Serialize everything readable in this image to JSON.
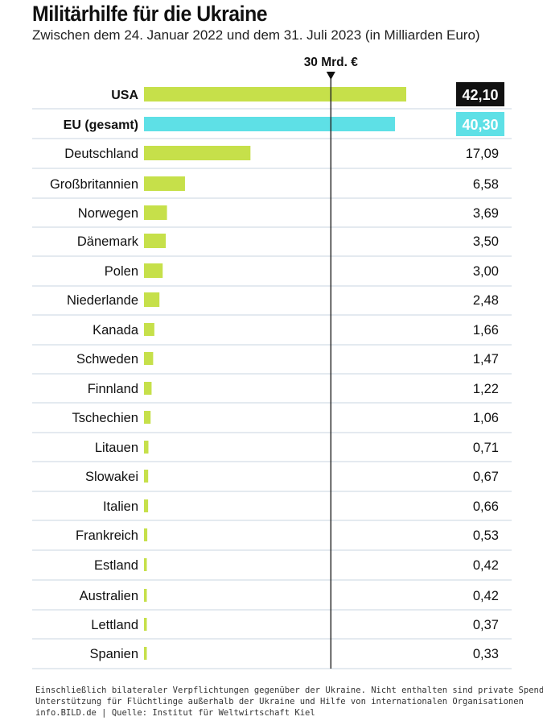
{
  "header": {
    "title": "Militärhilfe für die Ukraine",
    "subtitle": "Zwischen dem 24. Januar 2022 und dem 31. Juli 2023 (in Milliarden Euro)"
  },
  "footer": {
    "note_line1": "Einschließlich bilateraler Verpflichtungen gegenüber der Ukraine. Nicht enthalten sind private Spenden,",
    "note_line2": "Unterstützung für Flüchtlinge außerhalb der Ukraine und Hilfe von internationalen Organisationen",
    "source": "info.BILD.de | Quelle: Institut für Weltwirtschaft Kiel"
  },
  "chart_data": {
    "type": "bar",
    "orientation": "horizontal",
    "title": "Militärhilfe für die Ukraine",
    "subtitle": "Zwischen dem 24. Januar 2022 und dem 31. Juli 2023 (in Milliarden Euro)",
    "unit": "Milliarden Euro",
    "xlim": [
      0,
      45
    ],
    "reference_line": {
      "value": 30,
      "label": "30 Mrd. €"
    },
    "colors": {
      "default": "#c6e04a",
      "eu": "#5ee0e6",
      "usa_badge": "#111111",
      "grid": "#c9d5e0"
    },
    "categories": [
      "USA",
      "EU (gesamt)",
      "Deutschland",
      "Großbritannien",
      "Norwegen",
      "Dänemark",
      "Polen",
      "Niederlande",
      "Kanada",
      "Schweden",
      "Finnland",
      "Tschechien",
      "Litauen",
      "Slowakei",
      "Italien",
      "Frankreich",
      "Estland",
      "Australien",
      "Lettland",
      "Spanien"
    ],
    "values": [
      42.1,
      40.3,
      17.09,
      6.58,
      3.69,
      3.5,
      3.0,
      2.48,
      1.66,
      1.47,
      1.22,
      1.06,
      0.71,
      0.67,
      0.66,
      0.53,
      0.42,
      0.42,
      0.37,
      0.33
    ],
    "value_labels": [
      "42,10",
      "40,30",
      "17,09",
      "6,58",
      "3,69",
      "3,50",
      "3,00",
      "2,48",
      "1,66",
      "1,47",
      "1,22",
      "1,06",
      "0,71",
      "0,67",
      "0,66",
      "0,53",
      "0,42",
      "0,42",
      "0,37",
      "0,33"
    ],
    "highlighted": [
      "USA",
      "EU (gesamt)"
    ]
  }
}
